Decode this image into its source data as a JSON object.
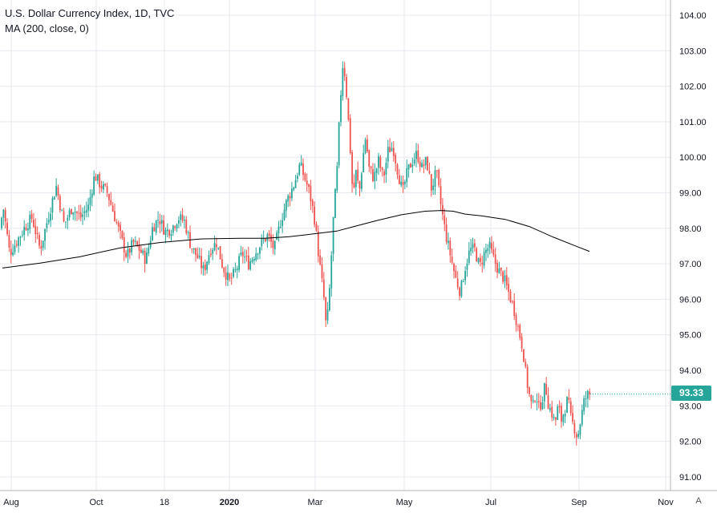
{
  "chart_data": {
    "type": "candlestick",
    "title": "U.S. Dollar Currency Index, 1D, TVC",
    "indicator": "MA (200, close, 0)",
    "ylim": [
      90.8,
      104.4
    ],
    "y_ticks": [
      "104.00",
      "103.00",
      "102.00",
      "101.00",
      "100.00",
      "99.00",
      "98.00",
      "97.00",
      "96.00",
      "95.00",
      "94.00",
      "93.00",
      "92.00",
      "91.00"
    ],
    "x_ticks": [
      {
        "label": "Aug",
        "bold": false
      },
      {
        "label": "Oct",
        "bold": false
      },
      {
        "label": "18",
        "bold": false
      },
      {
        "label": "2020",
        "bold": true
      },
      {
        "label": "Mar",
        "bold": false
      },
      {
        "label": "May",
        "bold": false
      },
      {
        "label": "Jul",
        "bold": false
      },
      {
        "label": "Sep",
        "bold": false
      },
      {
        "label": "Nov",
        "bold": false
      }
    ],
    "last_price": "93.33",
    "grid": true,
    "colors": {
      "up": "#26a69a",
      "down": "#ef5350",
      "ma": "#000000",
      "grid": "#e6e9ef",
      "axis": "#b2b5be",
      "text": "#131722"
    },
    "close_path": [
      [
        0,
        98.0
      ],
      [
        4,
        98.6
      ],
      [
        12,
        97.3
      ],
      [
        20,
        97.6
      ],
      [
        30,
        98.0
      ],
      [
        40,
        98.3
      ],
      [
        50,
        97.4
      ],
      [
        60,
        98.3
      ],
      [
        70,
        99.2
      ],
      [
        80,
        98.1
      ],
      [
        90,
        98.6
      ],
      [
        100,
        98.3
      ],
      [
        110,
        98.6
      ],
      [
        118,
        99.5
      ],
      [
        126,
        99.2
      ],
      [
        134,
        99.0
      ],
      [
        142,
        98.4
      ],
      [
        150,
        97.8
      ],
      [
        158,
        97.2
      ],
      [
        166,
        97.6
      ],
      [
        174,
        97.4
      ],
      [
        182,
        97.1
      ],
      [
        190,
        98.0
      ],
      [
        198,
        98.3
      ],
      [
        206,
        97.9
      ],
      [
        214,
        98.0
      ],
      [
        222,
        98.3
      ],
      [
        230,
        98.2
      ],
      [
        238,
        97.5
      ],
      [
        246,
        97.2
      ],
      [
        254,
        96.8
      ],
      [
        262,
        97.4
      ],
      [
        270,
        97.6
      ],
      [
        278,
        96.9
      ],
      [
        286,
        96.5
      ],
      [
        294,
        96.8
      ],
      [
        302,
        97.3
      ],
      [
        310,
        97.0
      ],
      [
        318,
        97.3
      ],
      [
        326,
        97.6
      ],
      [
        334,
        97.8
      ],
      [
        342,
        97.4
      ],
      [
        350,
        98.2
      ],
      [
        358,
        98.8
      ],
      [
        366,
        99.2
      ],
      [
        374,
        99.8
      ],
      [
        380,
        99.4
      ],
      [
        386,
        99.0
      ],
      [
        392,
        98.3
      ],
      [
        398,
        97.1
      ],
      [
        404,
        96.0
      ],
      [
        407,
        95.1
      ],
      [
        411,
        96.3
      ],
      [
        416,
        98.4
      ],
      [
        420,
        99.5
      ],
      [
        424,
        101.5
      ],
      [
        428,
        102.8
      ],
      [
        432,
        101.8
      ],
      [
        436,
        100.5
      ],
      [
        440,
        98.9
      ],
      [
        444,
        99.6
      ],
      [
        448,
        99.0
      ],
      [
        452,
        99.9
      ],
      [
        456,
        100.6
      ],
      [
        460,
        99.7
      ],
      [
        466,
        99.4
      ],
      [
        472,
        99.9
      ],
      [
        478,
        99.4
      ],
      [
        484,
        100.2
      ],
      [
        490,
        100.3
      ],
      [
        496,
        99.6
      ],
      [
        502,
        99.0
      ],
      [
        508,
        99.6
      ],
      [
        514,
        99.9
      ],
      [
        520,
        100.1
      ],
      [
        526,
        99.7
      ],
      [
        532,
        99.9
      ],
      [
        538,
        99.1
      ],
      [
        544,
        99.6
      ],
      [
        550,
        98.6
      ],
      [
        556,
        97.8
      ],
      [
        562,
        97.2
      ],
      [
        568,
        96.6
      ],
      [
        574,
        96.2
      ],
      [
        580,
        96.9
      ],
      [
        586,
        97.4
      ],
      [
        592,
        97.4
      ],
      [
        598,
        96.9
      ],
      [
        604,
        97.3
      ],
      [
        610,
        97.5
      ],
      [
        616,
        97.1
      ],
      [
        622,
        96.8
      ],
      [
        628,
        96.6
      ],
      [
        634,
        96.2
      ],
      [
        640,
        95.8
      ],
      [
        646,
        95.2
      ],
      [
        652,
        94.6
      ],
      [
        656,
        93.8
      ],
      [
        660,
        93.3
      ],
      [
        664,
        92.9
      ],
      [
        668,
        93.4
      ],
      [
        672,
        92.9
      ],
      [
        676,
        93.2
      ],
      [
        680,
        93.6
      ],
      [
        684,
        93.0
      ],
      [
        688,
        92.8
      ],
      [
        692,
        92.5
      ],
      [
        696,
        93.0
      ],
      [
        700,
        92.6
      ],
      [
        704,
        92.9
      ],
      [
        708,
        93.2
      ],
      [
        712,
        92.6
      ],
      [
        716,
        92.4
      ],
      [
        720,
        92.1
      ],
      [
        724,
        92.6
      ],
      [
        728,
        93.1
      ],
      [
        732,
        93.3
      ],
      [
        736,
        93.33
      ]
    ],
    "ma_path": [
      [
        3,
        96.88
      ],
      [
        50,
        97.02
      ],
      [
        100,
        97.2
      ],
      [
        150,
        97.45
      ],
      [
        200,
        97.6
      ],
      [
        250,
        97.7
      ],
      [
        300,
        97.72
      ],
      [
        330,
        97.72
      ],
      [
        360,
        97.76
      ],
      [
        390,
        97.84
      ],
      [
        420,
        97.92
      ],
      [
        440,
        98.04
      ],
      [
        470,
        98.22
      ],
      [
        500,
        98.38
      ],
      [
        530,
        98.48
      ],
      [
        550,
        98.5
      ],
      [
        565,
        98.48
      ],
      [
        580,
        98.4
      ],
      [
        600,
        98.35
      ],
      [
        630,
        98.25
      ],
      [
        660,
        98.05
      ],
      [
        690,
        97.75
      ],
      [
        720,
        97.48
      ],
      [
        735,
        97.35
      ]
    ]
  },
  "scale_mode_label": "A"
}
